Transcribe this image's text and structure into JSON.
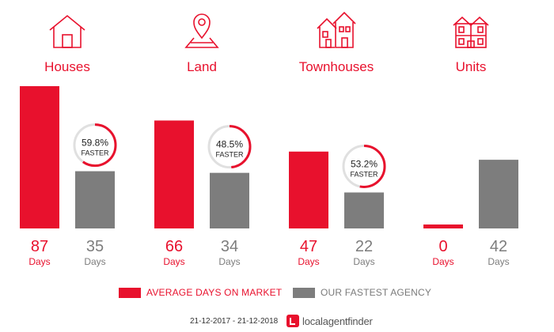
{
  "chart_data": {
    "type": "bar",
    "categories": [
      "Houses",
      "Land",
      "Townhouses",
      "Units"
    ],
    "category_icons": [
      "house-icon",
      "map-pin-icon",
      "townhouses-icon",
      "units-icon"
    ],
    "series": [
      {
        "name": "AVERAGE DAYS ON MARKET",
        "values": [
          87,
          66,
          47,
          0
        ],
        "color": "#e8112d"
      },
      {
        "name": "OUR FASTEST AGENCY",
        "values": [
          35,
          34,
          22,
          42
        ],
        "color": "#7d7d7d"
      }
    ],
    "value_unit": "Days",
    "faster_badges": [
      {
        "category": "Houses",
        "percent": "59.8%",
        "label": "FASTER",
        "fraction": 0.598
      },
      {
        "category": "Land",
        "percent": "48.5%",
        "label": "FASTER",
        "fraction": 0.485
      },
      {
        "category": "Townhouses",
        "percent": "53.2%",
        "label": "FASTER",
        "fraction": 0.532
      }
    ],
    "ylim": [
      0,
      87
    ]
  },
  "legend": {
    "red_label": "AVERAGE DAYS ON MARKET",
    "grey_label": "OUR FASTEST AGENCY"
  },
  "footer": {
    "date_range": "21-12-2017 - 21-12-2018",
    "brand_part1": "localagent",
    "brand_part2": "finder"
  },
  "colors": {
    "accent": "#e8112d",
    "grey": "#7d7d7d",
    "badge_bg": "#ffffff"
  }
}
